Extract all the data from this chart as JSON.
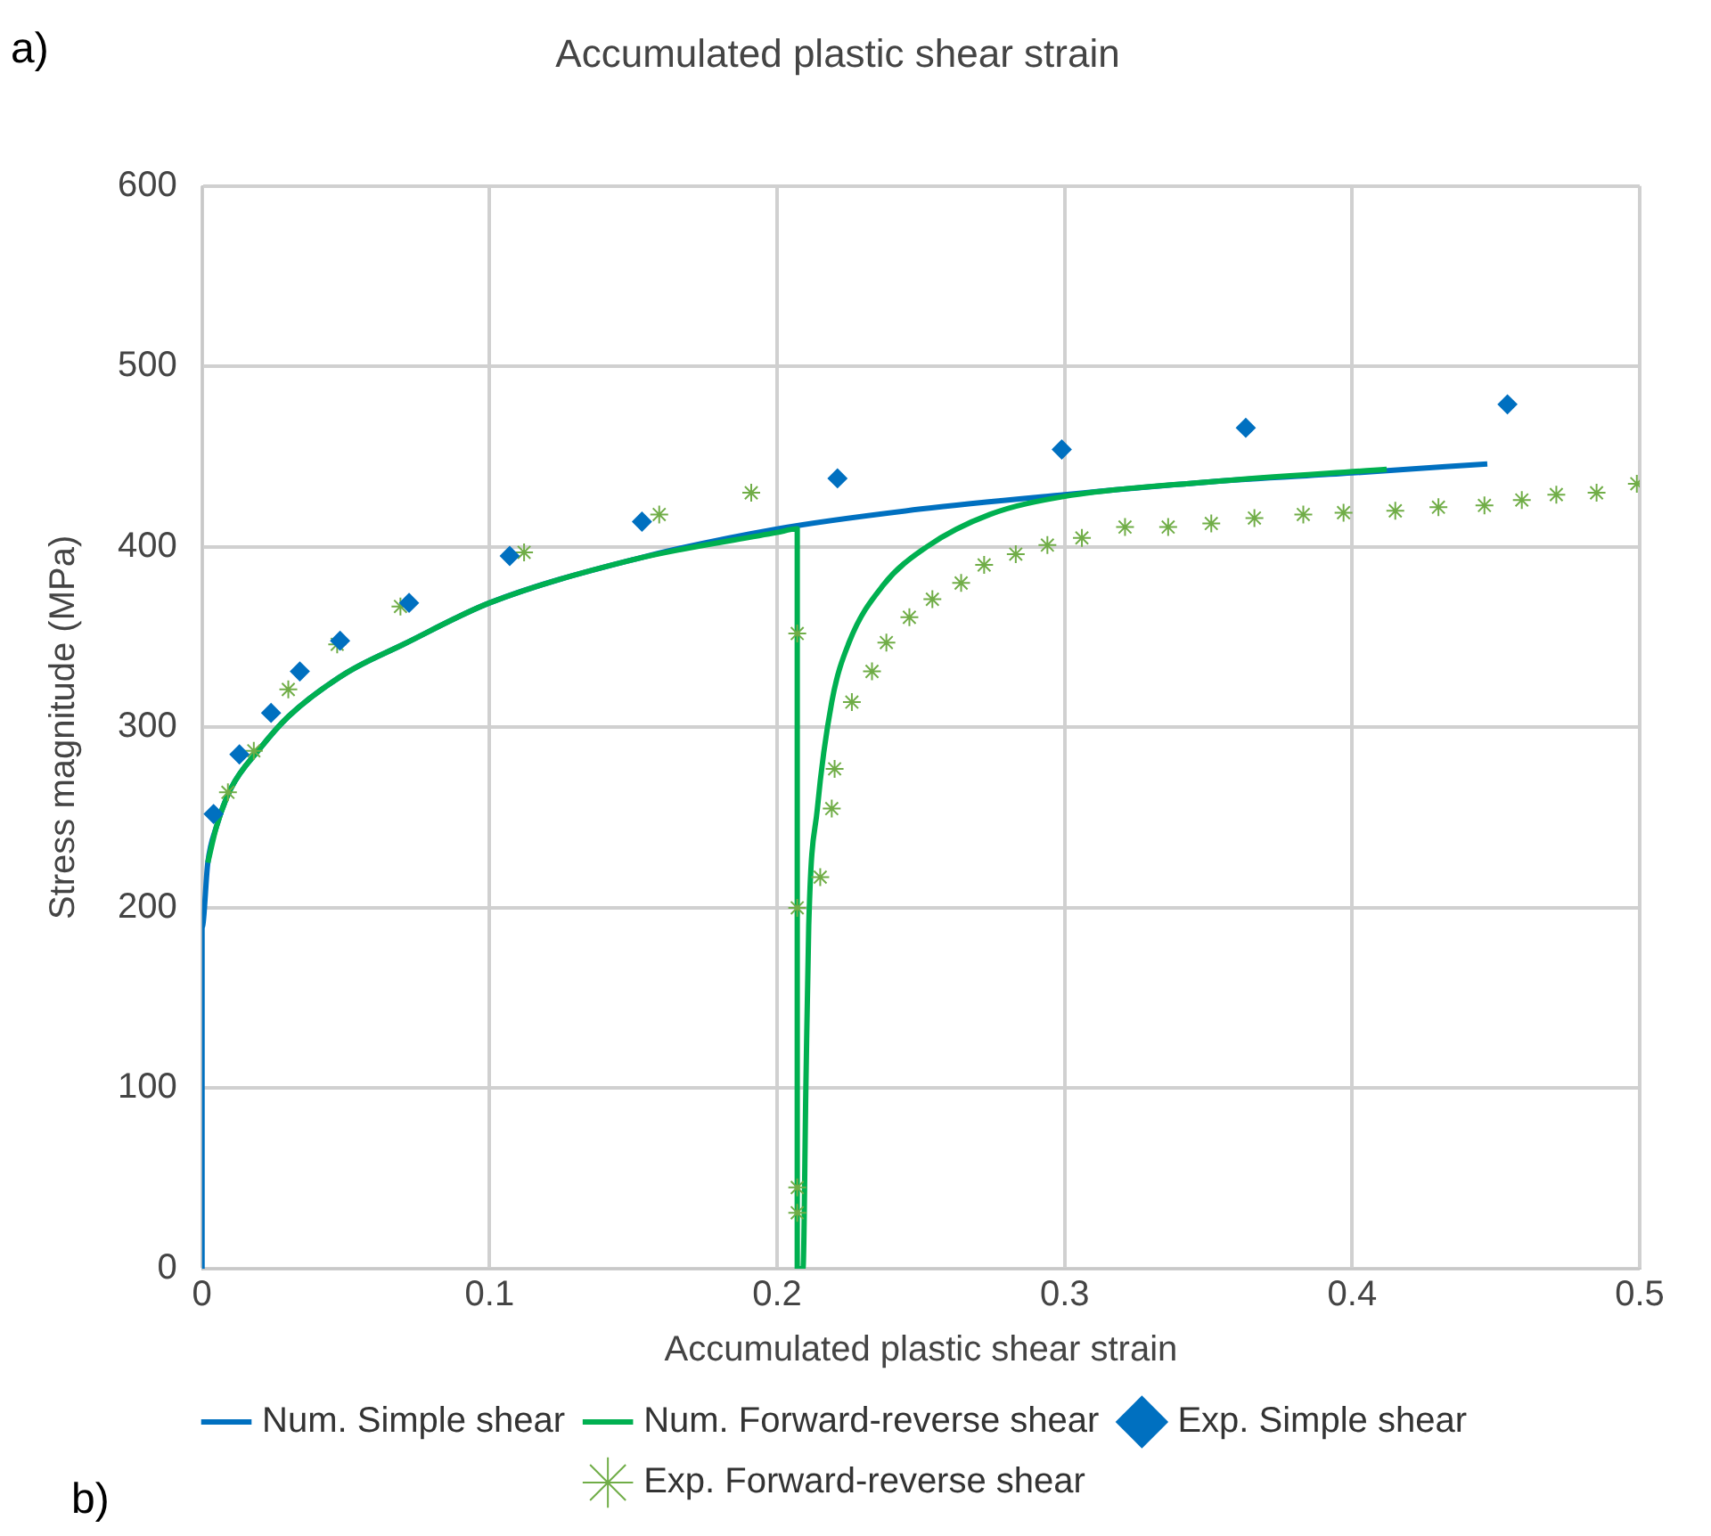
{
  "chart_data": {
    "type": "scatter",
    "title": "Accumulated plastic shear strain",
    "xlabel": "Accumulated plastic shear strain",
    "ylabel": "Stress magnitude (MPa)",
    "xlim": [
      0,
      0.5
    ],
    "xticks": [
      0,
      0.1,
      0.2,
      0.3,
      0.4,
      0.5
    ],
    "ylim": [
      0,
      600
    ],
    "yticks": [
      0,
      100,
      200,
      300,
      400,
      500,
      600
    ],
    "grid": true,
    "legend": "bottom",
    "annotations": [
      "a)",
      "b)"
    ],
    "series": [
      {
        "name": "Num. Simple shear",
        "type": "line",
        "marker": "none",
        "color": "#0070c0",
        "x": [
          0,
          0,
          0.002,
          0.005,
          0.01,
          0.02,
          0.03,
          0.05,
          0.07,
          0.1,
          0.15,
          0.2,
          0.25,
          0.3,
          0.35,
          0.4,
          0.447
        ],
        "values": [
          0,
          189,
          225,
          245,
          266,
          288,
          306,
          330,
          346,
          369,
          393,
          410,
          421,
          429,
          436,
          441,
          446
        ]
      },
      {
        "name": "Num. Forward-reverse shear",
        "type": "line",
        "marker": "none",
        "color": "#00b050",
        "x": [
          0.002,
          0.005,
          0.01,
          0.02,
          0.03,
          0.05,
          0.07,
          0.1,
          0.15,
          0.2,
          0.207,
          0.207,
          0.209,
          0.21,
          0.211,
          0.214,
          0.219,
          0.225,
          0.237,
          0.252,
          0.274,
          0.3,
          0.35,
          0.412
        ],
        "values": [
          225,
          245,
          266,
          288,
          306,
          330,
          346,
          369,
          393,
          408,
          410,
          0,
          0,
          100,
          190,
          255,
          314,
          347,
          379,
          400,
          418,
          428,
          436,
          443
        ]
      },
      {
        "name": "Exp. Simple shear",
        "type": "scatter",
        "marker": "diamond",
        "color": "#0070c0",
        "x": [
          0.004,
          0.013,
          0.024,
          0.034,
          0.048,
          0.072,
          0.107,
          0.153,
          0.221,
          0.299,
          0.363,
          0.454
        ],
        "values": [
          252,
          285,
          308,
          331,
          348,
          369,
          395,
          414,
          438,
          454,
          466,
          479
        ]
      },
      {
        "name": "Exp. Forward-reverse shear",
        "type": "scatter",
        "marker": "cross",
        "color": "#70ad47",
        "x": [
          0.009,
          0.018,
          0.03,
          0.047,
          0.069,
          0.112,
          0.159,
          0.191,
          0.207,
          0.207,
          0.207,
          0.207,
          0.215,
          0.219,
          0.22,
          0.226,
          0.233,
          0.238,
          0.246,
          0.254,
          0.264,
          0.272,
          0.283,
          0.294,
          0.306,
          0.321,
          0.336,
          0.351,
          0.366,
          0.383,
          0.397,
          0.415,
          0.43,
          0.446,
          0.459,
          0.471,
          0.485,
          0.499
        ],
        "values": [
          264,
          287,
          321,
          346,
          367,
          397,
          418,
          430,
          31,
          45,
          200,
          352,
          217,
          255,
          277,
          314,
          331,
          347,
          361,
          371,
          380,
          390,
          396,
          401,
          405,
          411,
          411,
          413,
          416,
          418,
          419,
          420,
          422,
          423,
          426,
          429,
          430,
          435
        ]
      }
    ]
  }
}
